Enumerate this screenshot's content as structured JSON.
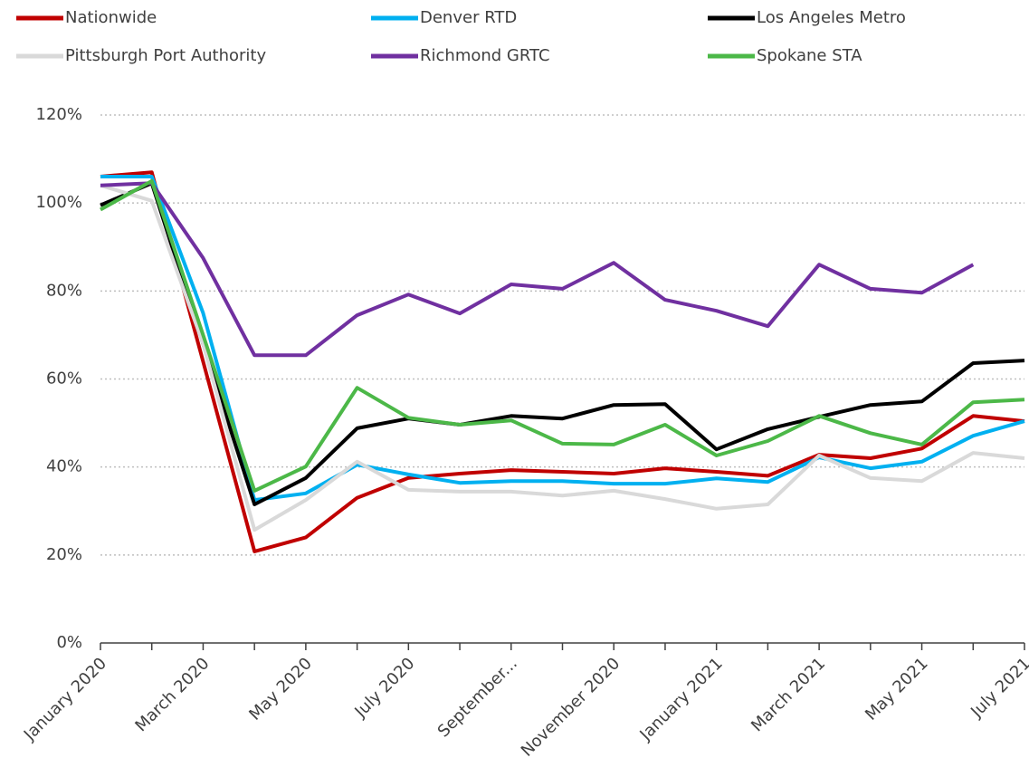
{
  "chart_data": {
    "type": "line",
    "categories": [
      "January 2020",
      null,
      "March 2020",
      null,
      "May 2020",
      null,
      "July 2020",
      null,
      "September...",
      null,
      "November 2020",
      null,
      "January 2021",
      null,
      "March 2021",
      null,
      "May 2021",
      null,
      "July 2021"
    ],
    "series": [
      {
        "name": "Nationwide",
        "color": "#c00000",
        "values": [
          106,
          107,
          64,
          20.8,
          24,
          33,
          37.5,
          38.5,
          39.3,
          38.9,
          38.5,
          39.7,
          38.9,
          38,
          42.8,
          42,
          44.2,
          51.6,
          50.4
        ]
      },
      {
        "name": "Denver RTD",
        "color": "#00b0f0",
        "values": [
          106,
          106,
          75,
          32.5,
          34,
          40.5,
          38.3,
          36.4,
          36.8,
          36.8,
          36.2,
          36.2,
          37.4,
          36.6,
          42.2,
          39.7,
          41.2,
          47.1,
          50.4
        ]
      },
      {
        "name": "Los Angeles Metro",
        "color": "#000000",
        "values": [
          99.5,
          104.5,
          68,
          31.5,
          37.5,
          48.8,
          51,
          49.6,
          51.6,
          51,
          54.1,
          54.3,
          44,
          48.6,
          51.4,
          54.1,
          54.9,
          63.6,
          64.2
        ]
      },
      {
        "name": "Pittsburgh Port Authority",
        "color": "#d9d9d9",
        "values": [
          104,
          100.5,
          68,
          25.7,
          32.5,
          41.2,
          34.8,
          34.4,
          34.4,
          33.5,
          34.6,
          32.7,
          30.5,
          31.5,
          42.6,
          37.5,
          36.8,
          43.2,
          42
        ]
      },
      {
        "name": "Richmond GRTC",
        "color": "#7030a0",
        "values": [
          104,
          104.5,
          87.5,
          65.4,
          65.4,
          74.5,
          79.2,
          74.9,
          81.5,
          80.5,
          86.4,
          78,
          75.5,
          72,
          86,
          80.5,
          79.6,
          86,
          null
        ]
      },
      {
        "name": "Spokane STA",
        "color": "#4cb848",
        "values": [
          98.5,
          105,
          70,
          34.6,
          40.1,
          58,
          51.2,
          49.6,
          50.6,
          45.3,
          45.1,
          49.6,
          42.6,
          45.9,
          51.6,
          47.7,
          45.1,
          54.7,
          55.3
        ]
      }
    ],
    "ylim": [
      0,
      120
    ],
    "yticks": [
      {
        "value": 0,
        "label": "0%"
      },
      {
        "value": 20,
        "label": "20%"
      },
      {
        "value": 40,
        "label": "40%"
      },
      {
        "value": 60,
        "label": "60%"
      },
      {
        "value": 80,
        "label": "80%"
      },
      {
        "value": 100,
        "label": "100%"
      },
      {
        "value": 120,
        "label": "120%"
      }
    ],
    "grid": true,
    "legend": "top"
  }
}
